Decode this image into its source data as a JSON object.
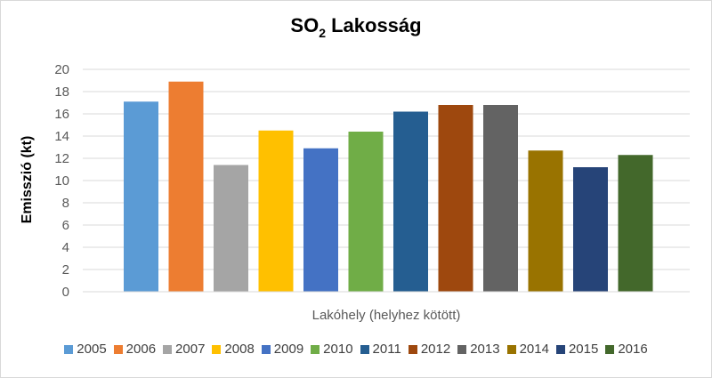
{
  "chart_data": {
    "type": "bar",
    "title_main": "SO",
    "title_sub": "2",
    "title_rest": " Lakosság",
    "xlabel": "Lakóhely (helyhez kötött)",
    "ylabel": "Emisszió (kt)",
    "ylim": [
      0,
      20
    ],
    "yticks": [
      "0",
      "2",
      "4",
      "6",
      "8",
      "10",
      "12",
      "14",
      "16",
      "18",
      "20"
    ],
    "grid": true,
    "legend_position": "bottom",
    "series": [
      {
        "name": "2005",
        "value": 17.1,
        "color": "#5b9bd5"
      },
      {
        "name": "2006",
        "value": 18.9,
        "color": "#ed7d31"
      },
      {
        "name": "2007",
        "value": 11.4,
        "color": "#a5a5a5"
      },
      {
        "name": "2008",
        "value": 14.5,
        "color": "#ffc000"
      },
      {
        "name": "2009",
        "value": 12.9,
        "color": "#4472c4"
      },
      {
        "name": "2010",
        "value": 14.4,
        "color": "#70ad47"
      },
      {
        "name": "2011",
        "value": 16.2,
        "color": "#255e91"
      },
      {
        "name": "2012",
        "value": 16.8,
        "color": "#9e480e"
      },
      {
        "name": "2013",
        "value": 16.8,
        "color": "#636363"
      },
      {
        "name": "2014",
        "value": 12.7,
        "color": "#997300"
      },
      {
        "name": "2015",
        "value": 11.2,
        "color": "#264478"
      },
      {
        "name": "2016",
        "value": 12.3,
        "color": "#43682b"
      }
    ]
  }
}
